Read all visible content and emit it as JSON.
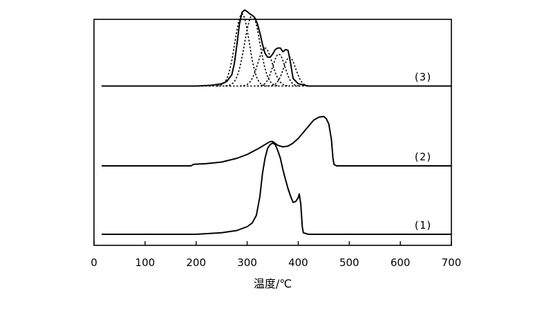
{
  "chart_data": {
    "type": "line",
    "xlabel": "温度/℃",
    "ylabel": "",
    "xlim": [
      0,
      700
    ],
    "xticks": [
      0,
      100,
      200,
      300,
      400,
      500,
      600,
      700
    ],
    "series": [
      {
        "name": "(1)",
        "offset": 0,
        "x": [
          15,
          200,
          250,
          280,
          300,
          310,
          318,
          325,
          330,
          335,
          340,
          345,
          350,
          355,
          360,
          365,
          370,
          375,
          380,
          385,
          390,
          395,
          400,
          402,
          405,
          408,
          410,
          420,
          500,
          700
        ],
        "y": [
          0,
          0,
          0.02,
          0.05,
          0.1,
          0.15,
          0.25,
          0.5,
          0.8,
          1.0,
          1.13,
          1.18,
          1.2,
          1.18,
          1.1,
          1.0,
          0.85,
          0.72,
          0.6,
          0.5,
          0.42,
          0.43,
          0.48,
          0.53,
          0.4,
          0.1,
          0.02,
          0,
          0,
          0
        ]
      },
      {
        "name": "(2)",
        "offset": 0.9,
        "x": [
          15,
          190,
          195,
          220,
          250,
          280,
          300,
          320,
          335,
          345,
          350,
          360,
          370,
          380,
          390,
          400,
          410,
          420,
          430,
          440,
          450,
          455,
          460,
          465,
          468,
          470,
          475,
          700
        ],
        "y": [
          0,
          0,
          0.02,
          0.03,
          0.05,
          0.1,
          0.15,
          0.22,
          0.28,
          0.32,
          0.32,
          0.27,
          0.25,
          0.26,
          0.3,
          0.36,
          0.44,
          0.52,
          0.6,
          0.64,
          0.65,
          0.62,
          0.55,
          0.35,
          0.1,
          0.02,
          0,
          0
        ]
      },
      {
        "name": "(3)",
        "offset": 1.95,
        "x": [
          15,
          200,
          230,
          250,
          260,
          270,
          275,
          280,
          285,
          290,
          295,
          300,
          305,
          310,
          315,
          320,
          325,
          330,
          335,
          340,
          345,
          350,
          355,
          360,
          365,
          370,
          375,
          380,
          385,
          390,
          400,
          420,
          450,
          700
        ],
        "y": [
          0,
          0,
          0.01,
          0.03,
          0.06,
          0.15,
          0.3,
          0.55,
          0.82,
          0.97,
          1.0,
          0.98,
          0.95,
          0.93,
          0.9,
          0.82,
          0.7,
          0.55,
          0.43,
          0.38,
          0.38,
          0.42,
          0.48,
          0.5,
          0.5,
          0.45,
          0.48,
          0.47,
          0.3,
          0.1,
          0.03,
          0,
          0,
          0
        ]
      }
    ],
    "fit_peaks": [
      {
        "center": 290,
        "height": 0.95,
        "width": 14
      },
      {
        "center": 310,
        "height": 0.93,
        "width": 15
      },
      {
        "center": 335,
        "height": 0.5,
        "width": 14
      },
      {
        "center": 362,
        "height": 0.42,
        "width": 12
      },
      {
        "center": 383,
        "height": 0.38,
        "width": 12
      }
    ]
  }
}
